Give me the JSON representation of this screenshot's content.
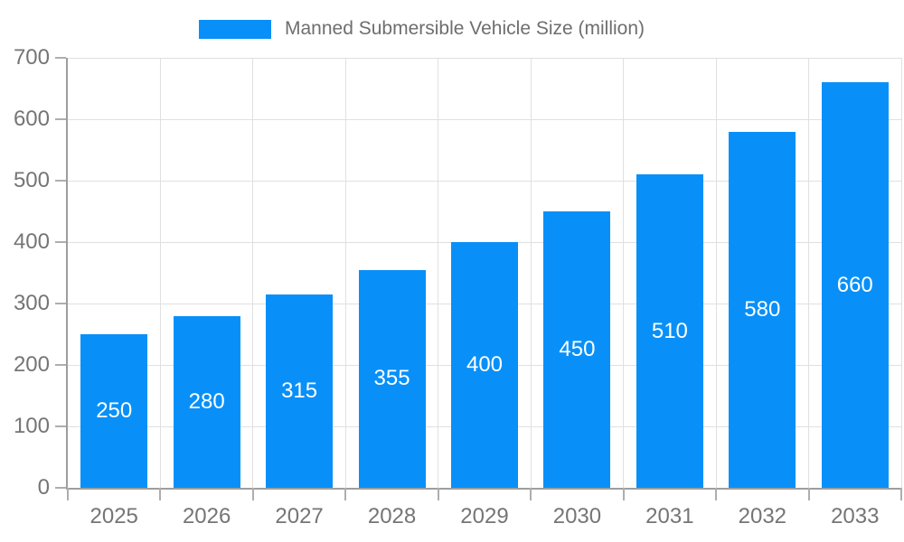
{
  "chart_data": {
    "type": "bar",
    "series_name": "Manned Submersible Vehicle Size (million)",
    "categories": [
      "2025",
      "2026",
      "2027",
      "2028",
      "2029",
      "2030",
      "2031",
      "2032",
      "2033"
    ],
    "values": [
      250,
      280,
      315,
      355,
      400,
      450,
      510,
      580,
      660
    ],
    "bar_value_labels": [
      250,
      280,
      315,
      355,
      400,
      450,
      510,
      580,
      660
    ],
    "xlabel": "",
    "ylabel": "",
    "ylim": [
      0,
      700
    ],
    "yticks": [
      0,
      100,
      200,
      300,
      400,
      500,
      600,
      700
    ],
    "grid": true,
    "legend_position": "top-center"
  },
  "colors": {
    "bar": "#0890f8",
    "bar_label": "#ffffff",
    "axis_text": "#757575",
    "legend_text": "#6e6e6e",
    "gridline": "#e0e0e0",
    "spine": "#9e9e9e",
    "tick": "#aeaeae",
    "background": "#ffffff"
  }
}
